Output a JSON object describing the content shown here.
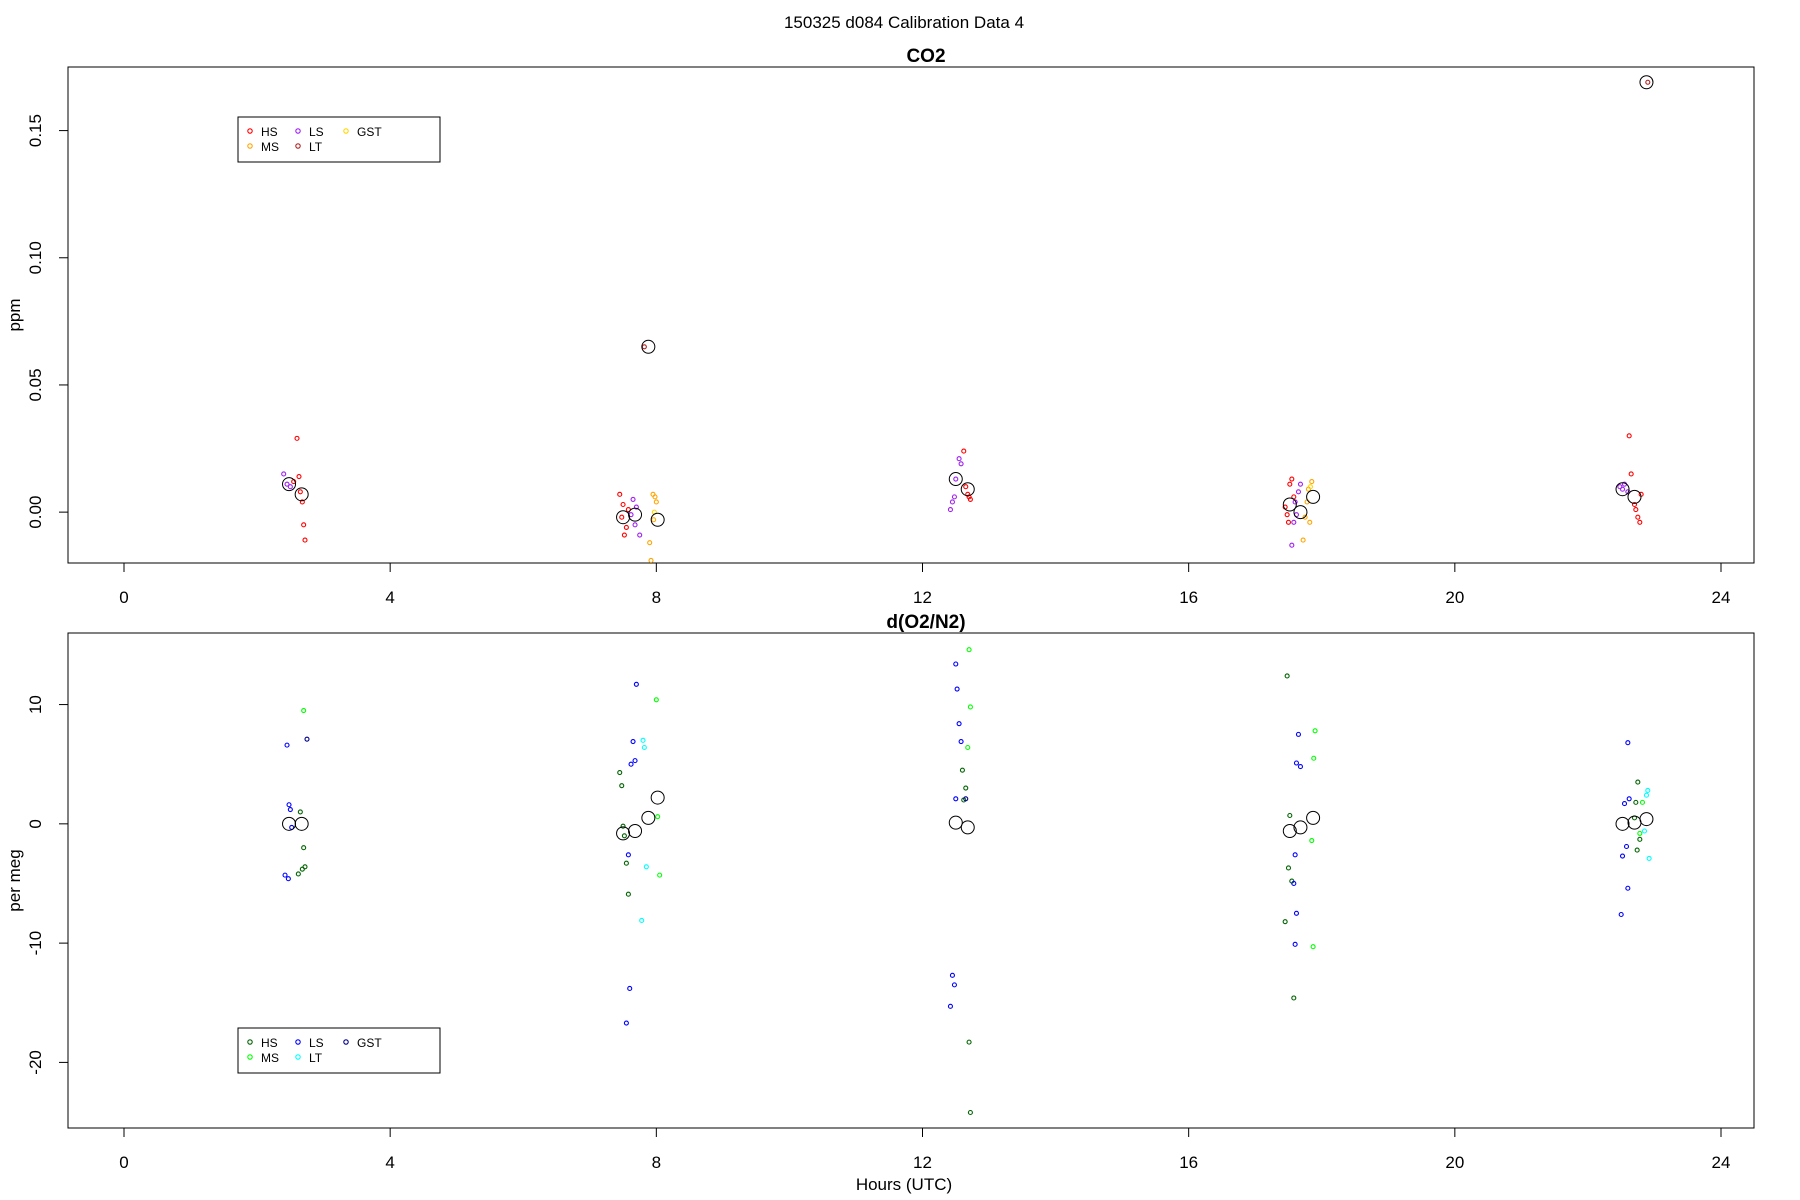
{
  "figure": {
    "suptitle": "150325   d084   Calibration Data 4",
    "xlabel": "Hours (UTC)"
  },
  "chart_data": [
    {
      "type": "scatter",
      "title": "CO2",
      "xlabel": "",
      "ylabel": "ppm",
      "xlim": [
        0,
        24
      ],
      "ylim": [
        -0.02,
        0.175
      ],
      "xticks": [
        "0",
        "4",
        "8",
        "12",
        "16",
        "20",
        "24"
      ],
      "yticks": [
        "0.00",
        "0.05",
        "0.10",
        "0.15"
      ],
      "grid": false,
      "legend": {
        "placement": "top-left",
        "entries": [
          {
            "label": "HS",
            "color": "#ff0000"
          },
          {
            "label": "MS",
            "color": "#ffa500"
          },
          {
            "label": "LS",
            "color": "#a020f0"
          },
          {
            "label": "LT",
            "color": "#b22222"
          },
          {
            "label": "GST",
            "color": "#ffd700"
          }
        ]
      },
      "series": [
        {
          "name": "HS",
          "color": "#ff0000",
          "points": [
            [
              2.55,
              0.012
            ],
            [
              2.6,
              0.029
            ],
            [
              2.65,
              0.008
            ],
            [
              2.68,
              0.004
            ],
            [
              2.7,
              -0.005
            ],
            [
              2.72,
              -0.011
            ],
            [
              2.63,
              0.014
            ],
            [
              7.45,
              0.007
            ],
            [
              7.5,
              0.003
            ],
            [
              7.48,
              -0.002
            ],
            [
              7.55,
              -0.006
            ],
            [
              7.52,
              -0.009
            ],
            [
              7.58,
              0.001
            ],
            [
              12.62,
              0.024
            ],
            [
              12.65,
              0.01
            ],
            [
              12.68,
              0.007
            ],
            [
              12.7,
              0.006
            ],
            [
              12.72,
              0.005
            ],
            [
              17.45,
              0.002
            ],
            [
              17.48,
              -0.001
            ],
            [
              17.52,
              0.011
            ],
            [
              17.55,
              0.013
            ],
            [
              17.5,
              -0.004
            ],
            [
              17.58,
              0.006
            ],
            [
              22.62,
              0.03
            ],
            [
              22.65,
              0.015
            ],
            [
              22.7,
              0.003
            ],
            [
              22.72,
              0.001
            ],
            [
              22.75,
              -0.002
            ],
            [
              22.78,
              -0.004
            ],
            [
              22.8,
              0.007
            ]
          ]
        },
        {
          "name": "MS",
          "color": "#ffa500",
          "points": [
            [
              7.95,
              0.007
            ],
            [
              7.98,
              0.006
            ],
            [
              7.9,
              -0.012
            ],
            [
              7.92,
              -0.019
            ],
            [
              8.0,
              0.004
            ],
            [
              7.96,
              -0.003
            ],
            [
              17.85,
              0.012
            ],
            [
              17.8,
              0.009
            ],
            [
              17.78,
              0.004
            ],
            [
              17.75,
              -0.002
            ],
            [
              17.72,
              -0.011
            ],
            [
              17.82,
              -0.004
            ]
          ]
        },
        {
          "name": "LS",
          "color": "#a020f0",
          "points": [
            [
              2.4,
              0.015
            ],
            [
              2.45,
              0.011
            ],
            [
              2.5,
              0.01
            ],
            [
              7.65,
              0.005
            ],
            [
              7.7,
              0.002
            ],
            [
              7.62,
              -0.001
            ],
            [
              7.68,
              -0.005
            ],
            [
              7.75,
              -0.009
            ],
            [
              12.45,
              0.004
            ],
            [
              12.48,
              0.006
            ],
            [
              12.5,
              0.013
            ],
            [
              12.55,
              0.021
            ],
            [
              12.58,
              0.019
            ],
            [
              12.42,
              0.001
            ],
            [
              17.6,
              0.004
            ],
            [
              17.62,
              -0.001
            ],
            [
              17.65,
              0.008
            ],
            [
              17.68,
              0.011
            ],
            [
              17.58,
              -0.004
            ],
            [
              17.55,
              -0.013
            ],
            [
              22.48,
              0.01
            ],
            [
              22.52,
              0.009
            ],
            [
              22.55,
              0.011
            ],
            [
              22.6,
              0.008
            ]
          ]
        },
        {
          "name": "LT",
          "color": "#b22222",
          "points": [
            [
              7.82,
              0.065
            ],
            [
              22.9,
              0.169
            ]
          ]
        },
        {
          "name": "GST",
          "color": "#ffd700",
          "points": [
            [
              7.97,
              0.0
            ],
            [
              17.83,
              0.01
            ]
          ]
        },
        {
          "name": "mean",
          "color": "#000000",
          "large": true,
          "points": [
            [
              2.48,
              0.011
            ],
            [
              2.67,
              0.007
            ],
            [
              7.5,
              -0.002
            ],
            [
              7.68,
              -0.001
            ],
            [
              7.88,
              0.065
            ],
            [
              8.02,
              -0.003
            ],
            [
              12.5,
              0.013
            ],
            [
              12.68,
              0.009
            ],
            [
              17.52,
              0.003
            ],
            [
              17.68,
              0.0
            ],
            [
              17.87,
              0.006
            ],
            [
              22.52,
              0.009
            ],
            [
              22.7,
              0.006
            ],
            [
              22.88,
              0.169
            ]
          ]
        }
      ]
    },
    {
      "type": "scatter",
      "title": "d(O2/N2)",
      "xlabel": "Hours (UTC)",
      "ylabel": "per meg",
      "xlim": [
        0,
        24
      ],
      "ylim": [
        -25.5,
        16
      ],
      "xticks": [
        "0",
        "4",
        "8",
        "12",
        "16",
        "20",
        "24"
      ],
      "yticks": [
        "-20",
        "-10",
        "0",
        "10"
      ],
      "grid": false,
      "legend": {
        "placement": "bottom-left",
        "entries": [
          {
            "label": "HS",
            "color": "#006400"
          },
          {
            "label": "MS",
            "color": "#00ff00"
          },
          {
            "label": "LS",
            "color": "#0000ff"
          },
          {
            "label": "LT",
            "color": "#00ffff"
          },
          {
            "label": "GST",
            "color": "#00008b"
          }
        ]
      },
      "series": [
        {
          "name": "HS",
          "color": "#006400",
          "points": [
            [
              2.65,
              1.0
            ],
            [
              2.7,
              -2.0
            ],
            [
              2.68,
              -3.8
            ],
            [
              2.62,
              -4.2
            ],
            [
              2.72,
              -3.6
            ],
            [
              7.45,
              4.3
            ],
            [
              7.48,
              3.2
            ],
            [
              7.5,
              -0.2
            ],
            [
              7.52,
              -1.0
            ],
            [
              7.55,
              -3.3
            ],
            [
              7.58,
              -5.9
            ],
            [
              12.6,
              4.5
            ],
            [
              12.65,
              3.0
            ],
            [
              12.62,
              2.0
            ],
            [
              12.7,
              -18.3
            ],
            [
              12.72,
              -24.2
            ],
            [
              17.48,
              12.4
            ],
            [
              17.52,
              0.7
            ],
            [
              17.5,
              -3.7
            ],
            [
              17.55,
              -4.8
            ],
            [
              17.45,
              -8.2
            ],
            [
              17.58,
              -14.6
            ],
            [
              22.75,
              3.5
            ],
            [
              22.72,
              1.8
            ],
            [
              22.7,
              0.5
            ],
            [
              22.78,
              -1.3
            ],
            [
              22.74,
              -2.2
            ]
          ]
        },
        {
          "name": "MS",
          "color": "#00ff00",
          "points": [
            [
              2.7,
              9.5
            ],
            [
              8.0,
              10.4
            ],
            [
              8.02,
              0.6
            ],
            [
              8.05,
              -4.3
            ],
            [
              12.7,
              14.6
            ],
            [
              12.72,
              9.8
            ],
            [
              12.68,
              6.4
            ],
            [
              17.9,
              7.8
            ],
            [
              17.88,
              5.5
            ],
            [
              17.85,
              -1.4
            ],
            [
              17.87,
              -10.3
            ],
            [
              22.82,
              1.8
            ],
            [
              22.78,
              -0.8
            ]
          ]
        },
        {
          "name": "LS",
          "color": "#0000ff",
          "points": [
            [
              2.45,
              6.6
            ],
            [
              2.48,
              1.6
            ],
            [
              2.5,
              1.2
            ],
            [
              2.52,
              -0.3
            ],
            [
              2.42,
              -4.3
            ],
            [
              2.47,
              -4.6
            ],
            [
              7.7,
              11.7
            ],
            [
              7.65,
              6.9
            ],
            [
              7.62,
              5.0
            ],
            [
              7.68,
              5.3
            ],
            [
              7.58,
              -2.6
            ],
            [
              7.6,
              -13.8
            ],
            [
              7.55,
              -16.7
            ],
            [
              12.5,
              13.4
            ],
            [
              12.52,
              11.3
            ],
            [
              12.55,
              8.4
            ],
            [
              12.58,
              6.9
            ],
            [
              12.5,
              2.1
            ],
            [
              12.45,
              -12.7
            ],
            [
              12.48,
              -13.5
            ],
            [
              12.42,
              -15.3
            ],
            [
              17.65,
              7.5
            ],
            [
              17.68,
              4.8
            ],
            [
              17.62,
              5.1
            ],
            [
              17.6,
              -2.6
            ],
            [
              17.58,
              -5.0
            ],
            [
              17.62,
              -7.5
            ],
            [
              17.6,
              -10.1
            ],
            [
              22.6,
              6.8
            ],
            [
              22.55,
              1.7
            ],
            [
              22.62,
              2.1
            ],
            [
              22.58,
              -1.9
            ],
            [
              22.52,
              -2.7
            ],
            [
              22.6,
              -5.4
            ],
            [
              22.5,
              -7.6
            ]
          ]
        },
        {
          "name": "LT",
          "color": "#00ffff",
          "points": [
            [
              7.8,
              7.0
            ],
            [
              7.82,
              6.4
            ],
            [
              7.85,
              -3.6
            ],
            [
              7.78,
              -8.1
            ],
            [
              22.9,
              2.8
            ],
            [
              22.88,
              2.4
            ],
            [
              22.85,
              -0.6
            ],
            [
              22.92,
              -2.9
            ]
          ]
        },
        {
          "name": "GST",
          "color": "#00008b",
          "points": [
            [
              2.75,
              7.1
            ],
            [
              12.65,
              2.1
            ]
          ]
        },
        {
          "name": "mean",
          "color": "#000000",
          "large": true,
          "points": [
            [
              2.48,
              0.0
            ],
            [
              2.67,
              0.0
            ],
            [
              7.5,
              -0.8
            ],
            [
              7.68,
              -0.6
            ],
            [
              7.88,
              0.5
            ],
            [
              8.02,
              2.2
            ],
            [
              12.5,
              0.1
            ],
            [
              12.68,
              -0.3
            ],
            [
              17.52,
              -0.6
            ],
            [
              17.68,
              -0.3
            ],
            [
              17.87,
              0.5
            ],
            [
              22.52,
              0.0
            ],
            [
              22.7,
              0.1
            ],
            [
              22.88,
              0.4
            ]
          ]
        }
      ]
    }
  ]
}
